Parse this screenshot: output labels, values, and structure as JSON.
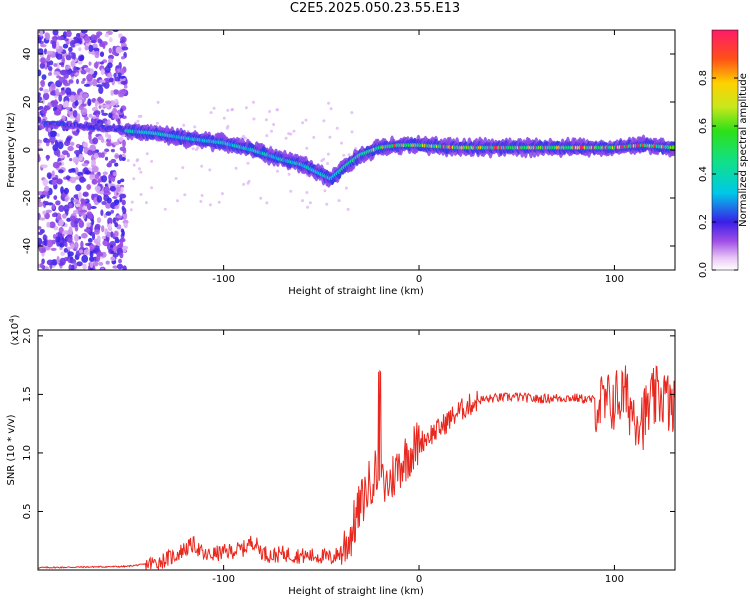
{
  "title": "C2E5.2025.050.23.55.E13",
  "colors": {
    "snr_line": "#e8281e",
    "spectrogram_low": "#8a2be2",
    "background": "#ffffff"
  },
  "chart_data": [
    {
      "type": "heatmap",
      "xlabel": "Height of straight line (km)",
      "ylabel": "Frequency (Hz)",
      "xlim": [
        -195,
        131
      ],
      "ylim": [
        -50,
        50
      ],
      "x_ticks": [
        -100,
        0,
        100
      ],
      "y_ticks": [
        -40,
        -20,
        0,
        20,
        40
      ],
      "colorbar": {
        "label": "Normalized spectral amplitude",
        "range": [
          0,
          1
        ],
        "ticks": [
          "0.0",
          "0.2",
          "0.4",
          "0.6",
          "0.8"
        ]
      },
      "ridge": {
        "x": [
          -190,
          -170,
          -150,
          -135,
          -120,
          -100,
          -85,
          -70,
          -60,
          -50,
          -45,
          -38,
          -30,
          -20,
          -10,
          0,
          20,
          40,
          60,
          80,
          100,
          115,
          130
        ],
        "freq": [
          11,
          10,
          8,
          7,
          5,
          3,
          0,
          -4,
          -6,
          -10,
          -12,
          -7,
          -2,
          1,
          2,
          2,
          1,
          1,
          1,
          1,
          1,
          2,
          1
        ]
      }
    },
    {
      "type": "line",
      "xlabel": "Height of straight line (km)",
      "ylabel": "SNR (10 * v/v)",
      "y_multiplier": "(x10^4)",
      "xlim": [
        -195,
        131
      ],
      "ylim": [
        0,
        2.05
      ],
      "x_ticks": [
        -100,
        0,
        100
      ],
      "y_ticks": [
        0.5,
        1.0,
        1.5,
        2.0
      ],
      "series": [
        {
          "x": [
            -195,
            -150,
            -135,
            -125,
            -120,
            -115,
            -110,
            -100,
            -90,
            -85,
            -80,
            -75,
            -70,
            -60,
            -50,
            -45,
            -40,
            -35,
            -30,
            -25,
            -22,
            -20,
            -15,
            -10,
            -5,
            0,
            5,
            10,
            15,
            20,
            25,
            30,
            40,
            50,
            60,
            70,
            80,
            90,
            95,
            100,
            105,
            110,
            115,
            120,
            125,
            130
          ],
          "y": [
            0.02,
            0.03,
            0.06,
            0.12,
            0.18,
            0.22,
            0.12,
            0.15,
            0.18,
            0.25,
            0.15,
            0.12,
            0.14,
            0.12,
            0.12,
            0.1,
            0.15,
            0.3,
            0.55,
            0.75,
            0.85,
            0.7,
            0.75,
            0.9,
            1.0,
            1.08,
            1.15,
            1.2,
            1.28,
            1.35,
            1.4,
            1.45,
            1.47,
            1.48,
            1.46,
            1.47,
            1.47,
            1.45,
            1.4,
            1.45,
            1.5,
            1.35,
            1.3,
            1.45,
            1.5,
            1.35
          ]
        }
      ]
    }
  ]
}
